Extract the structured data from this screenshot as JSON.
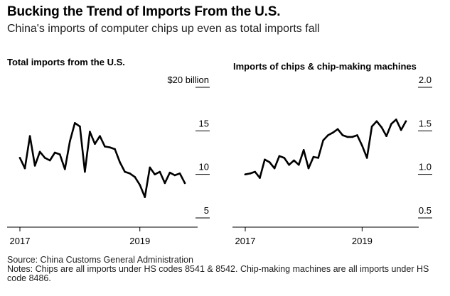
{
  "title": "Bucking the Trend of Imports From the U.S.",
  "subtitle": "China's imports of computer chips up even as total imports fall",
  "source": "Source: China Customs General Administration",
  "notes": "Notes: Chips are all imports under HS codes 8541 & 8542. Chip-making machines are all imports under HS code 8486.",
  "colors": {
    "line": "#000000",
    "axis": "#000000"
  },
  "chart_data": [
    {
      "type": "line",
      "title": "Total imports from the U.S.",
      "unit_label": "$20 billion",
      "ylim": [
        5,
        20
      ],
      "yticks": [
        "5",
        "10",
        "15"
      ],
      "ytick_values": [
        5,
        10,
        15
      ],
      "top_tick_value": 20,
      "xticks": [
        "2017",
        "2019"
      ],
      "xtick_index": [
        0,
        24
      ],
      "grid": false,
      "values": [
        11.9,
        10.7,
        14.4,
        11.0,
        12.6,
        11.9,
        11.6,
        12.5,
        12.3,
        10.6,
        13.8,
        15.9,
        15.5,
        10.3,
        14.9,
        13.5,
        14.4,
        13.2,
        13.1,
        12.9,
        11.4,
        10.3,
        10.1,
        9.7,
        8.8,
        7.4,
        10.8,
        10.0,
        10.3,
        9.0,
        10.2,
        9.9,
        10.1,
        9.0
      ]
    },
    {
      "type": "line",
      "title": "Imports of chips & chip-making machines",
      "ylim": [
        0.5,
        2.0
      ],
      "yticks": [
        "0.5",
        "1.0",
        "1.5",
        "2.0"
      ],
      "ytick_values": [
        0.5,
        1.0,
        1.5,
        2.0
      ],
      "xticks": [
        "2017",
        "2019"
      ],
      "xtick_index": [
        0,
        24
      ],
      "grid": false,
      "values": [
        1.0,
        1.01,
        1.03,
        0.96,
        1.17,
        1.14,
        1.07,
        1.21,
        1.19,
        1.11,
        1.16,
        1.11,
        1.28,
        1.07,
        1.2,
        1.19,
        1.39,
        1.45,
        1.48,
        1.52,
        1.45,
        1.43,
        1.43,
        1.45,
        1.33,
        1.19,
        1.55,
        1.61,
        1.54,
        1.44,
        1.58,
        1.63,
        1.51,
        1.61
      ]
    }
  ]
}
